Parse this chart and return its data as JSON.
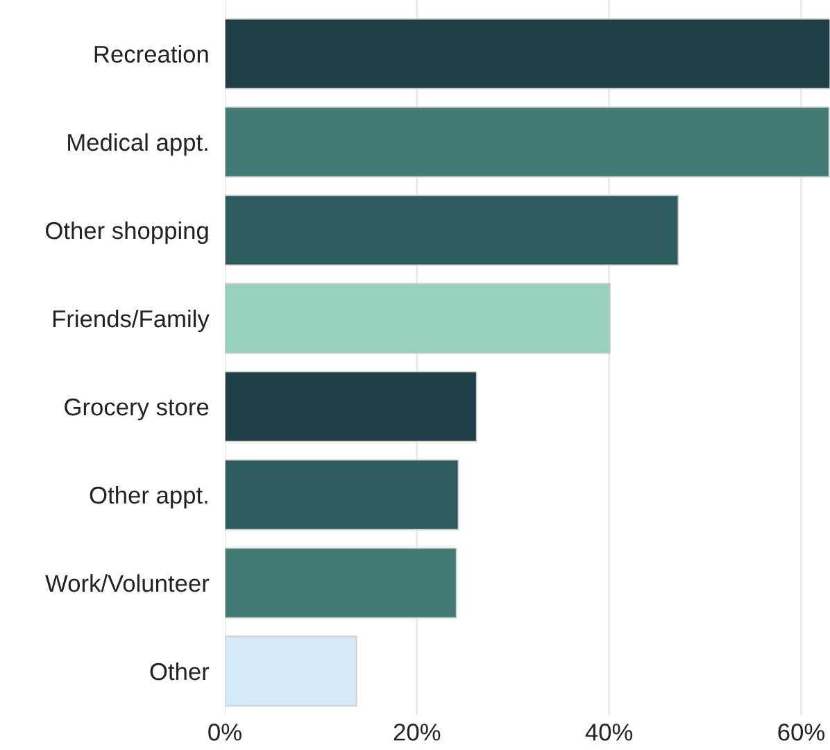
{
  "chart_data": {
    "type": "bar",
    "orientation": "horizontal",
    "categories": [
      "Recreation",
      "Medical appt.",
      "Other shopping",
      "Friends/Family",
      "Grocery store",
      "Other appt.",
      "Work/Volunteer",
      "Other"
    ],
    "values": [
      63,
      62.9,
      47.2,
      40.1,
      26.2,
      24.3,
      24.1,
      13.7
    ],
    "colors": [
      "#1f3e46",
      "#427a76",
      "#2d5b5e",
      "#97d0bb",
      "#1f3e46",
      "#2d5b5e",
      "#427a76",
      "#d5e9f7"
    ],
    "xlim": [
      0,
      63
    ],
    "xticks": [
      {
        "value": 0,
        "label": "0%"
      },
      {
        "value": 20,
        "label": "20%"
      },
      {
        "value": 40,
        "label": "40%"
      },
      {
        "value": 60,
        "label": "60%"
      }
    ],
    "grid": "x",
    "legend": false
  }
}
